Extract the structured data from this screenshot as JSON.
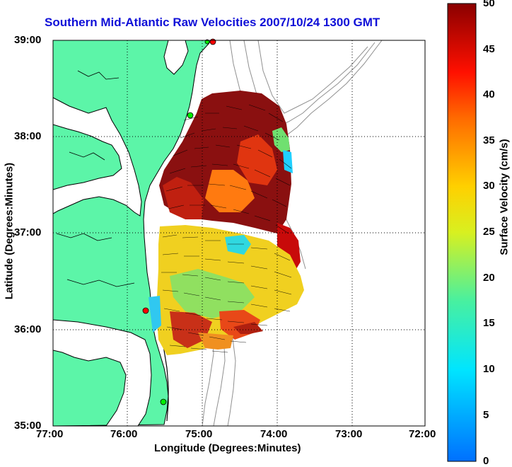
{
  "title": "Southern Mid-Atlantic Raw Velocities 2007/10/24 1300 GMT",
  "xlabel": "Longitude (Degrees:Minutes)",
  "ylabel": "Latitude (Degrees:Minutes)",
  "colorbar": {
    "label": "Surface Velocity (cm/s)",
    "ticks": [
      "50",
      "45",
      "40",
      "35",
      "30",
      "25",
      "20",
      "15",
      "10",
      "5",
      "0"
    ],
    "min": 0,
    "max": 50
  },
  "map": {
    "x_ticks": [
      "77:00",
      "76:00",
      "75:00",
      "74:00",
      "73:00",
      "72:00"
    ],
    "y_ticks": [
      "39:00",
      "38:00",
      "37:00",
      "36:00",
      "35:00"
    ],
    "lon_range": [
      -77,
      -72
    ],
    "lat_range": [
      35,
      39
    ],
    "grid": true,
    "colors": {
      "land": "#5cf5a8",
      "coast": "#000000",
      "bathymetry": "#909090",
      "station": "#ff0000",
      "station_alt": "#00ee00"
    }
  }
}
